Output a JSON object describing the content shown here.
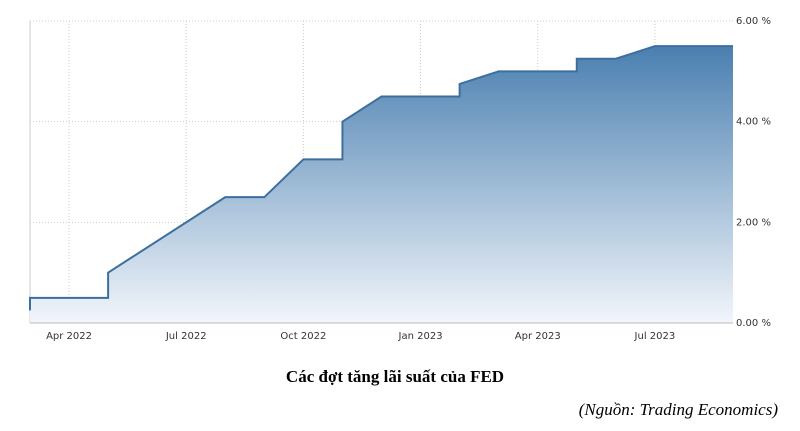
{
  "chart_data": {
    "type": "area",
    "title": "Các đợt tăng lãi suất của FED",
    "source": "(Nguồn: Trading Economics)",
    "x": [
      "2022-03",
      "2022-03",
      "2022-05",
      "2022-05",
      "2022-08",
      "2022-09",
      "2022-10",
      "2022-11",
      "2022-11",
      "2022-12",
      "2023-02",
      "2023-02",
      "2023-03",
      "2023-05",
      "2023-05",
      "2023-06",
      "2023-07",
      "2023-09"
    ],
    "values": [
      0.25,
      0.5,
      0.5,
      1.0,
      2.5,
      2.5,
      3.25,
      3.25,
      4.0,
      4.5,
      4.5,
      4.75,
      5.0,
      5.0,
      5.25,
      5.25,
      5.5,
      5.5
    ],
    "color": "#3d6f9e",
    "xlim": [
      "2022-03",
      "2023-09"
    ],
    "xticks": [
      {
        "value": "2022-04",
        "label": "Apr 2022"
      },
      {
        "value": "2022-07",
        "label": "Jul 2022"
      },
      {
        "value": "2022-10",
        "label": "Oct 2022"
      },
      {
        "value": "2023-01",
        "label": "Jan 2023"
      },
      {
        "value": "2023-04",
        "label": "Apr 2023"
      },
      {
        "value": "2023-07",
        "label": "Jul 2023"
      }
    ],
    "ylim": [
      0,
      6
    ],
    "yticks": [
      {
        "value": 0,
        "label": "0.00 %"
      },
      {
        "value": 2,
        "label": "2.00 %"
      },
      {
        "value": 4,
        "label": "4.00 %"
      },
      {
        "value": 6,
        "label": "6.00 %"
      }
    ],
    "grid": true
  }
}
